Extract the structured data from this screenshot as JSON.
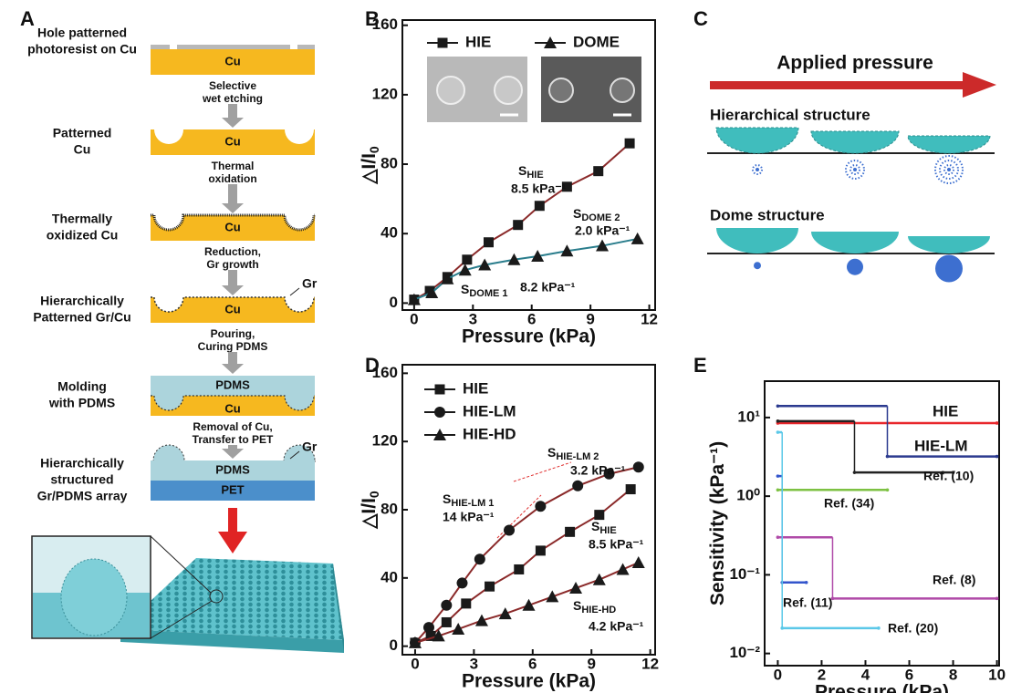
{
  "panel_labels": [
    "A",
    "B",
    "C",
    "D",
    "E"
  ],
  "process": {
    "steps": [
      {
        "label": [
          "Hole patterned",
          "photoresist on Cu"
        ],
        "layers": [
          "Cu"
        ]
      },
      {
        "label": [
          "Patterned",
          "Cu"
        ],
        "layers": [
          "Cu"
        ]
      },
      {
        "label": [
          "Thermally",
          "oxidized Cu"
        ],
        "layers": [
          "Cu"
        ]
      },
      {
        "label": [
          "Hierarchically",
          "Patterned Gr/Cu"
        ],
        "layers": [
          "Cu"
        ],
        "tag": "Gr"
      },
      {
        "label": [
          "Molding",
          "with PDMS"
        ],
        "layers": [
          "PDMS",
          "Cu"
        ]
      },
      {
        "label": [
          "Hierarchically",
          "structured",
          "Gr/PDMS array"
        ],
        "layers": [
          "PDMS",
          "PET"
        ],
        "tag": "Gr"
      }
    ],
    "transitions": [
      [
        "Selective",
        "wet etching"
      ],
      [
        "Thermal",
        "oxidation"
      ],
      [
        "Reduction,",
        "Gr growth"
      ],
      [
        "Pouring,",
        "Curing PDMS"
      ],
      [
        "Removal of Cu,",
        "Transfer to PET"
      ]
    ]
  },
  "schematic": {
    "arrow_label": "Applied pressure",
    "rows": [
      "Hierarchical structure",
      "Dome structure"
    ]
  },
  "chart_data": [
    {
      "type": "line",
      "x_label": "Pressure (kPa)",
      "y_label": "△I/I",
      "y_label_sub": "0",
      "xlim": [
        -0.6,
        12.3
      ],
      "ylim": [
        -4,
        163
      ],
      "xticks": [
        0,
        3,
        6,
        9,
        12
      ],
      "yticks": [
        0,
        40,
        80,
        120,
        160
      ],
      "legend": "upper center",
      "series": [
        {
          "name": "HIE",
          "marker": "square",
          "color": "#1a1a1a",
          "line_color": "#8b2a2a",
          "x": [
            0,
            0.8,
            1.7,
            2.7,
            3.8,
            5.3,
            6.4,
            7.8,
            9.4,
            11
          ],
          "values": [
            2,
            7,
            15,
            25,
            35,
            45,
            56,
            67,
            76,
            92
          ]
        },
        {
          "name": "DOME",
          "marker": "triangle",
          "color": "#1a1a1a",
          "line_color": "#2a7d8c",
          "x": [
            0,
            0.9,
            1.7,
            2.6,
            3.6,
            5.1,
            6.3,
            7.8,
            9.6,
            11.4
          ],
          "values": [
            2,
            6,
            14,
            19,
            22,
            25,
            27,
            30,
            33,
            37
          ]
        }
      ],
      "annotations": [
        {
          "symbol": "S",
          "sub": "HIE",
          "value": "8.5 kPa⁻¹"
        },
        {
          "symbol": "S",
          "sub": "DOME 2",
          "value": "2.0 kPa⁻¹"
        },
        {
          "symbol": "S",
          "sub": "DOME 1",
          "value": "8.2 kPa⁻¹"
        }
      ]
    },
    {
      "type": "line",
      "x_label": "Pressure (kPa)",
      "y_label": "△I/I",
      "y_label_sub": "0",
      "xlim": [
        -0.65,
        12.25
      ],
      "ylim": [
        -5,
        165
      ],
      "xticks": [
        0,
        3,
        6,
        9,
        12
      ],
      "yticks": [
        0,
        40,
        80,
        120,
        160
      ],
      "legend": "upper left",
      "series": [
        {
          "name": "HIE",
          "marker": "square",
          "color": "#1a1a1a",
          "line_color": "#8b2a2a",
          "x": [
            0,
            0.8,
            1.6,
            2.6,
            3.8,
            5.3,
            6.4,
            7.9,
            9.4,
            11
          ],
          "values": [
            2,
            6,
            14,
            25,
            35,
            45,
            56,
            67,
            77,
            92
          ]
        },
        {
          "name": "HIE-LM",
          "marker": "circle",
          "color": "#1a1a1a",
          "line_color": "#8b2a2a",
          "x": [
            0,
            0.7,
            1.6,
            2.4,
            3.3,
            4.8,
            6.4,
            8.3,
            9.9,
            11.4
          ],
          "values": [
            2,
            11,
            24,
            37,
            51,
            68,
            82,
            94,
            101,
            105
          ]
        },
        {
          "name": "HIE-HD",
          "marker": "triangle",
          "color": "#1a1a1a",
          "line_color": "#8b2a2a",
          "x": [
            0,
            1.2,
            2.2,
            3.4,
            4.6,
            5.8,
            7,
            8.2,
            9.4,
            10.6,
            11.4
          ],
          "values": [
            2,
            6,
            10,
            15,
            19,
            24,
            29,
            34,
            39,
            45,
            49
          ]
        }
      ],
      "annotations": [
        {
          "symbol": "S",
          "sub": "HIE-LM 1",
          "value": "14 kPa⁻¹"
        },
        {
          "symbol": "S",
          "sub": "HIE-LM 2",
          "value": "3.2 kPa⁻¹"
        },
        {
          "symbol": "S",
          "sub": "HIE",
          "value": "8.5 kPa⁻¹"
        },
        {
          "symbol": "S",
          "sub": "HIE-HD",
          "value": "4.2 kPa⁻¹"
        }
      ]
    },
    {
      "type": "line",
      "step": "post",
      "log_y": true,
      "x_label": "Pressure (kPa)",
      "y_label": "Sensitivity (kPa⁻¹)",
      "xlim": [
        -0.6,
        10.1
      ],
      "ylim": [
        0.007,
        29
      ],
      "xticks": [
        0,
        2,
        4,
        6,
        8,
        10
      ],
      "yticks": [
        {
          "value": 0.01,
          "label": "10⁻²"
        },
        {
          "value": 0.1,
          "label": "10⁻¹"
        },
        {
          "value": 1,
          "label": "10⁰"
        },
        {
          "value": 10,
          "label": "10¹"
        }
      ],
      "series": [
        {
          "name": "HIE",
          "color": "#e8262b",
          "marker": "dot",
          "x": [
            0,
            10
          ],
          "values": [
            8.5,
            8.5
          ]
        },
        {
          "name": "HIE-LM",
          "color": "#2b3a8f",
          "marker": "dot",
          "x": [
            0,
            5,
            10
          ],
          "values": [
            14,
            3.2,
            3.2
          ]
        },
        {
          "name": "Ref. (10)",
          "color": "#222222",
          "marker": "dot",
          "x": [
            0,
            3.5,
            8
          ],
          "values": [
            9,
            2,
            2
          ]
        },
        {
          "name": "Ref. (34)",
          "color": "#7dc142",
          "marker": "dot",
          "x": [
            0,
            5
          ],
          "values": [
            1.2,
            1.2
          ]
        },
        {
          "name": "Ref. (8)",
          "color": "#b04aa8",
          "marker": "dot",
          "x": [
            0,
            2.5,
            10
          ],
          "values": [
            0.3,
            0.05,
            0.05
          ]
        },
        {
          "name": "Ref. (11)",
          "color": "#3355cc",
          "marker": "dot",
          "x": [
            0,
            0.2,
            1.3
          ],
          "values": [
            1.8,
            0.08,
            0.08
          ]
        },
        {
          "name": "Ref. (20)",
          "color": "#5bc8e8",
          "marker": "dot",
          "x": [
            0,
            0.2,
            4.6
          ],
          "values": [
            6.5,
            0.021,
            0.021
          ]
        }
      ]
    }
  ]
}
